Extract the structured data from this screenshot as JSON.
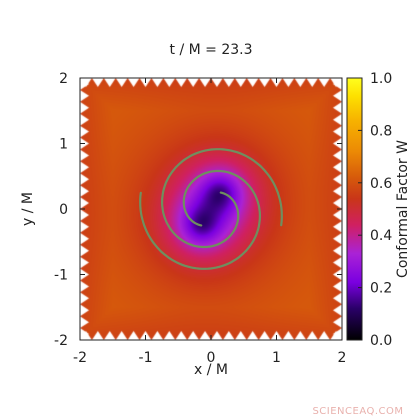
{
  "chart_data": {
    "type": "heatmap",
    "title": "t / M = 23.3",
    "xlabel": "x / M",
    "ylabel": "y / M",
    "xlim": [
      -2,
      2
    ],
    "ylim": [
      -2,
      2
    ],
    "x_ticks": [
      "-2",
      "-1",
      "0",
      "1",
      "2"
    ],
    "y_ticks": [
      "-2",
      "-1",
      "0",
      "1",
      "2"
    ],
    "colorbar": {
      "label": "Conformal Factor W",
      "range": [
        0.0,
        1.0
      ],
      "ticks": [
        "0.0",
        "0.2",
        "0.4",
        "0.6",
        "0.8",
        "1.0"
      ],
      "colormap": [
        {
          "v": 0.0,
          "color": "#000000"
        },
        {
          "v": 0.12,
          "color": "#2a0068"
        },
        {
          "v": 0.22,
          "color": "#7a00e0"
        },
        {
          "v": 0.33,
          "color": "#aa22d6"
        },
        {
          "v": 0.44,
          "color": "#d02060"
        },
        {
          "v": 0.54,
          "color": "#c93618"
        },
        {
          "v": 0.62,
          "color": "#d65a0b"
        },
        {
          "v": 0.72,
          "color": "#ec8a05"
        },
        {
          "v": 0.84,
          "color": "#f7b300"
        },
        {
          "v": 0.93,
          "color": "#fde000"
        },
        {
          "v": 1.0,
          "color": "#ffff1e"
        }
      ]
    },
    "field": {
      "background_value": 0.64,
      "sources": [
        {
          "x": 0.15,
          "y": 0.25
        },
        {
          "x": -0.15,
          "y": -0.25
        }
      ]
    },
    "trajectory_color": "#6f8f5f",
    "trajectories": [
      {
        "name": "",
        "start_x": 0.15,
        "start_y": 0.25,
        "turns": 1.2
      },
      {
        "name": "",
        "start_x": -0.15,
        "start_y": -0.25,
        "turns": 1.2
      }
    ]
  },
  "watermark": "SCIENCEAQ.COM"
}
